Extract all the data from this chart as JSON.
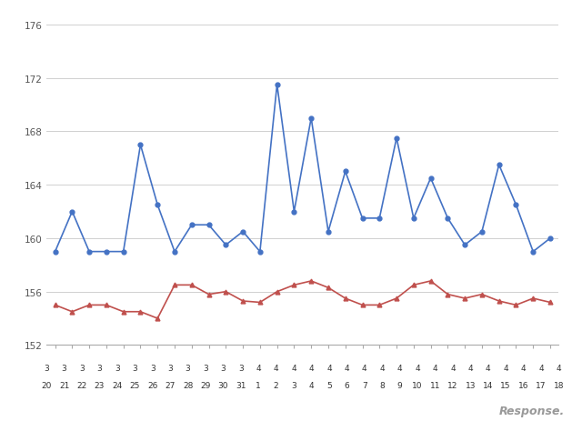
{
  "x_labels_top": [
    "3",
    "3",
    "3",
    "3",
    "3",
    "3",
    "3",
    "3",
    "3",
    "3",
    "3",
    "3",
    "4",
    "4",
    "4",
    "4",
    "4",
    "4",
    "4",
    "4",
    "4",
    "4",
    "4",
    "4",
    "4",
    "4",
    "4",
    "4",
    "4",
    "4"
  ],
  "x_labels_bottom": [
    "20",
    "21",
    "22",
    "23",
    "24",
    "25",
    "26",
    "27",
    "28",
    "29",
    "30",
    "31",
    "1",
    "2",
    "3",
    "4",
    "5",
    "6",
    "7",
    "8",
    "9",
    "10",
    "11",
    "12",
    "13",
    "14",
    "15",
    "16",
    "17",
    "18"
  ],
  "blue_values": [
    159.0,
    162.0,
    159.0,
    159.0,
    159.0,
    167.0,
    162.5,
    159.0,
    161.0,
    161.0,
    159.5,
    160.5,
    159.0,
    171.5,
    162.0,
    169.0,
    160.5,
    165.0,
    161.5,
    161.5,
    167.5,
    161.5,
    164.5,
    161.5,
    159.5,
    160.5,
    165.5,
    162.5,
    159.0,
    160.0
  ],
  "red_values": [
    155.0,
    154.5,
    155.0,
    155.0,
    154.5,
    154.5,
    154.0,
    156.5,
    156.5,
    155.8,
    156.0,
    155.3,
    155.2,
    156.0,
    156.5,
    156.8,
    156.3,
    155.5,
    155.0,
    155.0,
    155.5,
    156.5,
    156.8,
    155.8,
    155.5,
    155.8,
    155.3,
    155.0,
    155.5,
    155.2
  ],
  "blue_color": "#4472C4",
  "red_color": "#C0504D",
  "ylim": [
    152,
    176
  ],
  "yticks": [
    152,
    156,
    160,
    164,
    168,
    172,
    176
  ],
  "background_color": "#ffffff",
  "grid_color": "#d0d0d0",
  "watermark": "Response.",
  "figsize": [
    6.4,
    4.64
  ],
  "dpi": 100
}
